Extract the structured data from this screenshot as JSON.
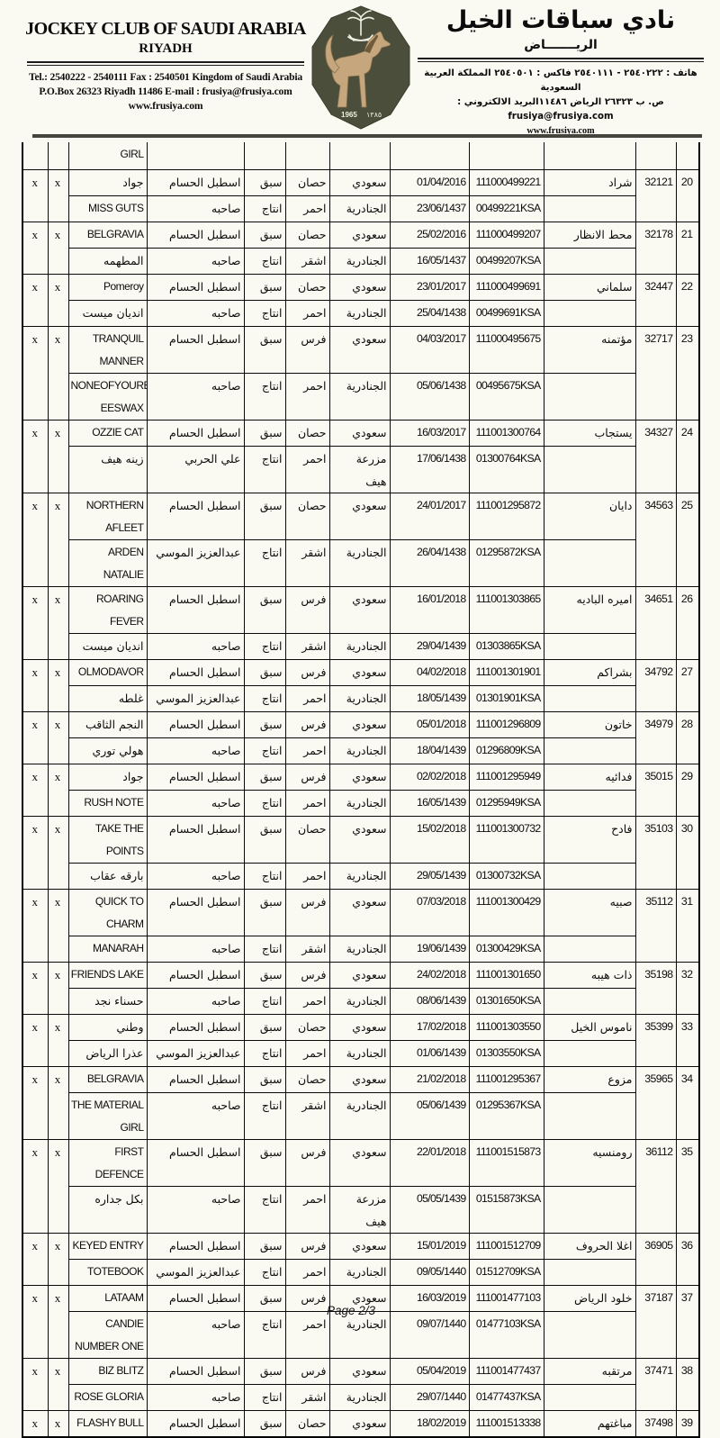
{
  "header": {
    "left": {
      "title": "JOCKEY CLUB OF SAUDI ARABIA",
      "subtitle": "RIYADH",
      "contact1": "Tel.: 2540222 - 2540111  Fax : 2540501   Kingdom of Saudi Arabia",
      "contact2": "P.O.Box 26323 Riyadh 11486   E-mail : frusiya@frusiya.com",
      "contact3": "www.frusiya.com"
    },
    "right": {
      "title": "نادي سباقات الخيل",
      "subtitle": "الريـــــــاض",
      "contact1": "هاتف : ٢٥٤٠٢٢٢ - ٢٥٤٠١١١  فاكس : ٢٥٤٠٥٠١   المملكة العربية السعودية",
      "contact2": "ص. ب ٢٦٣٢٣ الرياض ١١٤٨٦البريد الالكتروني : frusiya@frusiya.com",
      "contact3": "www.frusiya.com"
    },
    "logo": {
      "year_gregorian": "1965",
      "year_hijri": "١٣٨٥",
      "badge_color": "#4a4e3a",
      "horse_color": "#c6a77d"
    }
  },
  "footer": {
    "page_label": "Page 2/3"
  },
  "table": {
    "partial_row": {
      "name": "GIRL"
    },
    "entries": [
      {
        "num": "20",
        "id": "32121",
        "name_ar": "شراد",
        "marks": [
          "x",
          "x"
        ],
        "rows": [
          {
            "name": "جواد",
            "name_is_ar": true,
            "stable": "اسطبل الحسام",
            "act": "سبق",
            "kind": "حصان",
            "place": "سعودي",
            "date": "01/04/2016",
            "reg": "111000499221"
          },
          {
            "name": "MISS GUTS",
            "stable": "صاحبه",
            "act": "انتاج",
            "kind": "احمر",
            "place": "الجنادرية",
            "date": "23/06/1437",
            "reg": "00499221KSA"
          }
        ]
      },
      {
        "num": "21",
        "id": "32178",
        "name_ar": "محط الانظار",
        "marks": [
          "x",
          "x"
        ],
        "rows": [
          {
            "name": "BELGRAVIA",
            "stable": "اسطبل الحسام",
            "act": "سبق",
            "kind": "حصان",
            "place": "سعودي",
            "date": "25/02/2016",
            "reg": "111000499207"
          },
          {
            "name": "المطهمه",
            "name_is_ar": true,
            "stable": "صاحبه",
            "act": "انتاج",
            "kind": "اشقر",
            "place": "الجنادرية",
            "date": "16/05/1437",
            "reg": "00499207KSA"
          }
        ]
      },
      {
        "num": "22",
        "id": "32447",
        "name_ar": "سلماني",
        "marks": [
          "x",
          "x"
        ],
        "rows": [
          {
            "name": "Pomeroy",
            "stable": "اسطبل الحسام",
            "act": "سبق",
            "kind": "حصان",
            "place": "سعودي",
            "date": "23/01/2017",
            "reg": "111000499691"
          },
          {
            "name": "انديان ميست",
            "name_is_ar": true,
            "stable": "صاحبه",
            "act": "انتاج",
            "kind": "احمر",
            "place": "الجنادرية",
            "date": "25/04/1438",
            "reg": "00499691KSA"
          }
        ]
      },
      {
        "num": "23",
        "id": "32717",
        "name_ar": "مؤتمنه",
        "marks": [
          "x",
          "x"
        ],
        "rows": [
          {
            "name": "TRANQUIL\nMANNER",
            "stable": "اسطبل الحسام",
            "act": "سبق",
            "kind": "فرس",
            "place": "سعودي",
            "date": "04/03/2017",
            "reg": "111000495675"
          },
          {
            "name": "NONEOFYOURB\nEESWAX",
            "stable": "صاحبه",
            "act": "انتاج",
            "kind": "احمر",
            "place": "الجنادرية",
            "date": "05/06/1438",
            "reg": "00495675KSA"
          }
        ]
      },
      {
        "num": "24",
        "id": "34327",
        "name_ar": "يستجاب",
        "marks": [
          "x",
          "x"
        ],
        "rows": [
          {
            "name": "OZZIE CAT",
            "stable": "اسطبل الحسام",
            "act": "سبق",
            "kind": "حصان",
            "place": "سعودي",
            "date": "16/03/2017",
            "reg": "111001300764"
          },
          {
            "name": "زينه هيف",
            "name_is_ar": true,
            "stable": "علي الحربي",
            "act": "انتاج",
            "kind": "احمر",
            "place": "مزرعة هيف",
            "date": "17/06/1438",
            "reg": "01300764KSA"
          }
        ]
      },
      {
        "num": "25",
        "id": "34563",
        "name_ar": "دايان",
        "marks": [
          "x",
          "x"
        ],
        "rows": [
          {
            "name": "NORTHERN\nAFLEET",
            "stable": "اسطبل الحسام",
            "act": "سبق",
            "kind": "حصان",
            "place": "سعودي",
            "date": "24/01/2017",
            "reg": "111001295872"
          },
          {
            "name": "ARDEN NATALIE",
            "stable": "عبدالعزيز الموسي",
            "act": "انتاج",
            "kind": "اشقر",
            "place": "الجنادرية",
            "date": "26/04/1438",
            "reg": "01295872KSA"
          }
        ]
      },
      {
        "num": "26",
        "id": "34651",
        "name_ar": "اميره الباديه",
        "marks": [
          "x",
          "x"
        ],
        "rows": [
          {
            "name": "ROARING FEVER",
            "stable": "اسطبل الحسام",
            "act": "سبق",
            "kind": "فرس",
            "place": "سعودي",
            "date": "16/01/2018",
            "reg": "111001303865"
          },
          {
            "name": "انديان ميست",
            "name_is_ar": true,
            "stable": "صاحبه",
            "act": "انتاج",
            "kind": "اشقر",
            "place": "الجنادرية",
            "date": "29/04/1439",
            "reg": "01303865KSA"
          }
        ]
      },
      {
        "num": "27",
        "id": "34792",
        "name_ar": "بشراكم",
        "marks": [
          "x",
          "x"
        ],
        "rows": [
          {
            "name": "OLMODAVOR",
            "stable": "اسطبل الحسام",
            "act": "سبق",
            "kind": "فرس",
            "place": "سعودي",
            "date": "04/02/2018",
            "reg": "111001301901"
          },
          {
            "name": "غلطه",
            "name_is_ar": true,
            "stable": "عبدالعزيز الموسي",
            "act": "انتاج",
            "kind": "احمر",
            "place": "الجنادرية",
            "date": "18/05/1439",
            "reg": "01301901KSA"
          }
        ]
      },
      {
        "num": "28",
        "id": "34979",
        "name_ar": "خاتون",
        "marks": [
          "x",
          "x"
        ],
        "rows": [
          {
            "name": "النجم الثاقب",
            "name_is_ar": true,
            "stable": "اسطبل الحسام",
            "act": "سبق",
            "kind": "فرس",
            "place": "سعودي",
            "date": "05/01/2018",
            "reg": "111001296809"
          },
          {
            "name": "هولي توري",
            "name_is_ar": true,
            "stable": "صاحبه",
            "act": "انتاج",
            "kind": "احمر",
            "place": "الجنادرية",
            "date": "18/04/1439",
            "reg": "01296809KSA"
          }
        ]
      },
      {
        "num": "29",
        "id": "35015",
        "name_ar": "فدائيه",
        "marks": [
          "x",
          "x"
        ],
        "rows": [
          {
            "name": "جواد",
            "name_is_ar": true,
            "stable": "اسطبل الحسام",
            "act": "سبق",
            "kind": "فرس",
            "place": "سعودي",
            "date": "02/02/2018",
            "reg": "111001295949"
          },
          {
            "name": "RUSH NOTE",
            "stable": "صاحبه",
            "act": "انتاج",
            "kind": "احمر",
            "place": "الجنادرية",
            "date": "16/05/1439",
            "reg": "01295949KSA"
          }
        ]
      },
      {
        "num": "30",
        "id": "35103",
        "name_ar": "فادح",
        "marks": [
          "x",
          "x"
        ],
        "rows": [
          {
            "name": "TAKE THE\nPOINTS",
            "stable": "اسطبل الحسام",
            "act": "سبق",
            "kind": "حصان",
            "place": "سعودي",
            "date": "15/02/2018",
            "reg": "111001300732"
          },
          {
            "name": "بارقه عقاب",
            "name_is_ar": true,
            "stable": "صاحبه",
            "act": "انتاج",
            "kind": "احمر",
            "place": "الجنادرية",
            "date": "29/05/1439",
            "reg": "01300732KSA"
          }
        ]
      },
      {
        "num": "31",
        "id": "35112",
        "name_ar": "صبيه",
        "marks": [
          "x",
          "x"
        ],
        "rows": [
          {
            "name": "QUICK TO\nCHARM",
            "stable": "اسطبل الحسام",
            "act": "سبق",
            "kind": "فرس",
            "place": "سعودي",
            "date": "07/03/2018",
            "reg": "111001300429"
          },
          {
            "name": "MANARAH",
            "stable": "صاحبه",
            "act": "انتاج",
            "kind": "اشقر",
            "place": "الجنادرية",
            "date": "19/06/1439",
            "reg": "01300429KSA"
          }
        ]
      },
      {
        "num": "32",
        "id": "35198",
        "name_ar": "ذات هيبه",
        "marks": [
          "x",
          "x"
        ],
        "rows": [
          {
            "name": "FRIENDS LAKE",
            "stable": "اسطبل الحسام",
            "act": "سبق",
            "kind": "فرس",
            "place": "سعودي",
            "date": "24/02/2018",
            "reg": "111001301650"
          },
          {
            "name": "حسناء نجد",
            "name_is_ar": true,
            "stable": "صاحبه",
            "act": "انتاج",
            "kind": "احمر",
            "place": "الجنادرية",
            "date": "08/06/1439",
            "reg": "01301650KSA"
          }
        ]
      },
      {
        "num": "33",
        "id": "35399",
        "name_ar": "ناموس الخيل",
        "marks": [
          "x",
          "x"
        ],
        "rows": [
          {
            "name": "وطني",
            "name_is_ar": true,
            "stable": "اسطبل الحسام",
            "act": "سبق",
            "kind": "حصان",
            "place": "سعودي",
            "date": "17/02/2018",
            "reg": "111001303550"
          },
          {
            "name": "عذرا الرياض",
            "name_is_ar": true,
            "stable": "عبدالعزيز الموسي",
            "act": "انتاج",
            "kind": "احمر",
            "place": "الجنادرية",
            "date": "01/06/1439",
            "reg": "01303550KSA"
          }
        ]
      },
      {
        "num": "34",
        "id": "35965",
        "name_ar": "مزوع",
        "marks": [
          "x",
          "x"
        ],
        "rows": [
          {
            "name": "BELGRAVIA",
            "stable": "اسطبل الحسام",
            "act": "سبق",
            "kind": "حصان",
            "place": "سعودي",
            "date": "21/02/2018",
            "reg": "111001295367"
          },
          {
            "name": "THE MATERIAL\nGIRL",
            "stable": "صاحبه",
            "act": "انتاج",
            "kind": "اشقر",
            "place": "الجنادرية",
            "date": "05/06/1439",
            "reg": "01295367KSA"
          }
        ]
      },
      {
        "num": "35",
        "id": "36112",
        "name_ar": "رومنسيه",
        "marks": [
          "x",
          "x"
        ],
        "rows": [
          {
            "name": "FIRST DEFENCE",
            "stable": "اسطبل الحسام",
            "act": "سبق",
            "kind": "فرس",
            "place": "سعودي",
            "date": "22/01/2018",
            "reg": "111001515873"
          },
          {
            "name": "بكل جداره",
            "name_is_ar": true,
            "stable": "صاحبه",
            "act": "انتاج",
            "kind": "احمر",
            "place": "مزرعة هيف",
            "date": "05/05/1439",
            "reg": "01515873KSA"
          }
        ]
      },
      {
        "num": "36",
        "id": "36905",
        "name_ar": "اغلا الحروف",
        "marks": [
          "x",
          "x"
        ],
        "rows": [
          {
            "name": "KEYED ENTRY",
            "stable": "اسطبل الحسام",
            "act": "سبق",
            "kind": "فرس",
            "place": "سعودي",
            "date": "15/01/2019",
            "reg": "111001512709"
          },
          {
            "name": "TOTEBOOK",
            "stable": "عبدالعزيز الموسي",
            "act": "انتاج",
            "kind": "احمر",
            "place": "الجنادرية",
            "date": "09/05/1440",
            "reg": "01512709KSA"
          }
        ]
      },
      {
        "num": "37",
        "id": "37187",
        "name_ar": "خلود الرياض",
        "marks": [
          "x",
          "x"
        ],
        "rows": [
          {
            "name": "LATAAM",
            "stable": "اسطبل الحسام",
            "act": "سبق",
            "kind": "فرس",
            "place": "سعودي",
            "date": "16/03/2019",
            "reg": "111001477103"
          },
          {
            "name": "CANDIE\nNUMBER ONE",
            "stable": "صاحبه",
            "act": "انتاج",
            "kind": "احمر",
            "place": "الجنادرية",
            "date": "09/07/1440",
            "reg": "01477103KSA"
          }
        ]
      },
      {
        "num": "38",
        "id": "37471",
        "name_ar": "مرتقبه",
        "marks": [
          "x",
          "x"
        ],
        "rows": [
          {
            "name": "BIZ BLITZ",
            "stable": "اسطبل الحسام",
            "act": "سبق",
            "kind": "فرس",
            "place": "سعودي",
            "date": "05/04/2019",
            "reg": "111001477437"
          },
          {
            "name": "ROSE GLORIA",
            "stable": "صاحبه",
            "act": "انتاج",
            "kind": "اشقر",
            "place": "الجنادرية",
            "date": "29/07/1440",
            "reg": "01477437KSA"
          }
        ]
      },
      {
        "num": "39",
        "id": "37498",
        "name_ar": "مباغتهم",
        "marks": [
          "x",
          "x"
        ],
        "rows": [
          {
            "name": "FLASHY BULL",
            "stable": "اسطبل الحسام",
            "act": "سبق",
            "kind": "حصان",
            "place": "سعودي",
            "date": "18/02/2019",
            "reg": "111001513338"
          }
        ]
      }
    ]
  }
}
